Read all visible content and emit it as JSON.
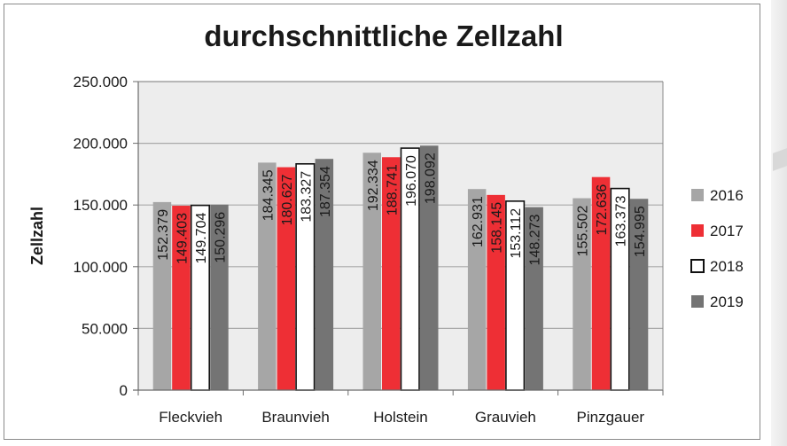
{
  "chart_data": {
    "type": "bar",
    "title": "durchschnittliche Zellzahl",
    "xlabel": "",
    "ylabel": "Zellzahl",
    "ylim": [
      0,
      250000
    ],
    "yticks": [
      0,
      50000,
      100000,
      150000,
      200000,
      250000
    ],
    "ytick_labels": [
      "0",
      "50.000",
      "100.000",
      "150.000",
      "200.000",
      "250.000"
    ],
    "grid": true,
    "legend_position": "right",
    "categories": [
      "Fleckvieh",
      "Braunvieh",
      "Holstein",
      "Grauvieh",
      "Pinzgauer"
    ],
    "series": [
      {
        "name": "2016",
        "color": "#a6a6a6",
        "values": [
          152379,
          184345,
          192334,
          162931,
          155502
        ],
        "labels": [
          "152.379",
          "184.345",
          "192.334",
          "162.931",
          "155.502"
        ]
      },
      {
        "name": "2017",
        "color": "#ee2f35",
        "values": [
          149403,
          180627,
          188741,
          158145,
          172636
        ],
        "labels": [
          "149.403",
          "180.627",
          "188.741",
          "158.145",
          "172.636"
        ]
      },
      {
        "name": "2018",
        "color": "#ffffff",
        "values": [
          149704,
          183327,
          196070,
          153112,
          163373
        ],
        "labels": [
          "149.704",
          "183.327",
          "196.070",
          "153.112",
          "163.373"
        ]
      },
      {
        "name": "2019",
        "color": "#747474",
        "values": [
          150296,
          187354,
          198092,
          148273,
          154995
        ],
        "labels": [
          "150.296",
          "187.354",
          "198.092",
          "148.273",
          "154.995"
        ]
      }
    ]
  }
}
